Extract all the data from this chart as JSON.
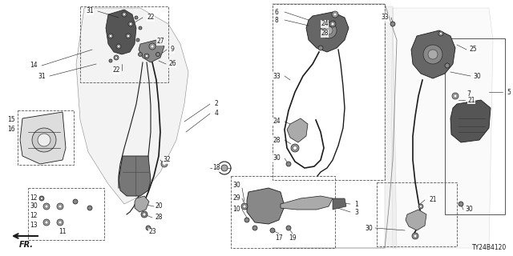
{
  "bg_color": "#ffffff",
  "line_color": "#1a1a1a",
  "diagram_id": "TY24B4120",
  "fig_w": 6.4,
  "fig_h": 3.2,
  "dpi": 100
}
